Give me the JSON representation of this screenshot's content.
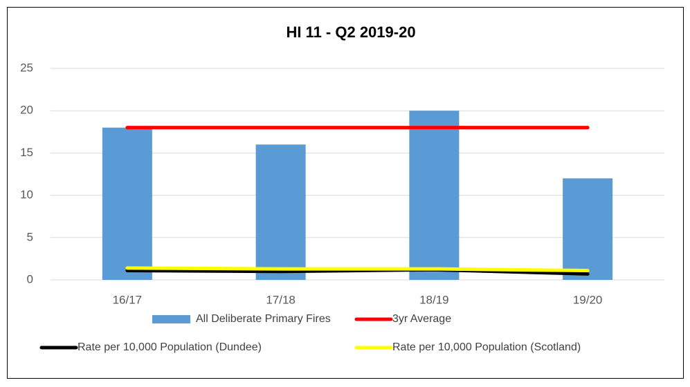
{
  "chart_data": {
    "type": "bar_line",
    "title": "HI 11 - Q2 2019-20",
    "categories": [
      "16/17",
      "17/18",
      "18/19",
      "19/20"
    ],
    "series": [
      {
        "name": "All Deliberate Primary Fires",
        "type": "bar",
        "color": "#5b9bd5",
        "values": [
          18,
          16,
          20,
          12
        ]
      },
      {
        "name": "3yr Average",
        "type": "line",
        "color": "#ff0000",
        "values": [
          18,
          18,
          18,
          18
        ]
      },
      {
        "name": "Rate per 10,000 Population (Dundee)",
        "type": "line",
        "color": "#000000",
        "values": [
          1.1,
          1.0,
          1.2,
          0.7
        ]
      },
      {
        "name": "Rate per 10,000 Population (Scotland)",
        "type": "line",
        "color": "#ffff00",
        "values": [
          1.4,
          1.3,
          1.3,
          1.1
        ]
      }
    ],
    "ylim": [
      0,
      25
    ],
    "yticks": [
      0,
      5,
      10,
      15,
      20,
      25
    ],
    "grid": true,
    "legend": "bottom"
  }
}
